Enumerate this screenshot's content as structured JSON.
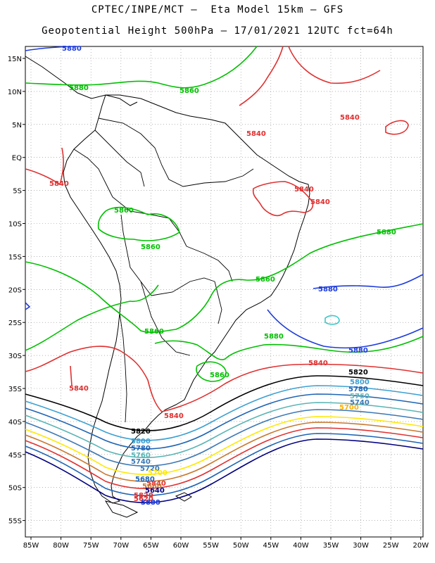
{
  "header": {
    "line1": "CPTEC/INPE/MCT –  Eta Model 15km – GFS",
    "line2": "Geopotential Height 500hPa – 17/01/2021 12UTC fct=64h"
  },
  "axes": {
    "lat_labels": [
      "15N",
      "10N",
      "5N",
      "EQ",
      "5S",
      "10S",
      "15S",
      "20S",
      "25S",
      "30S",
      "35S",
      "40S",
      "45S",
      "50S",
      "55S"
    ],
    "lon_labels": [
      "85W",
      "80W",
      "75W",
      "70W",
      "65W",
      "60W",
      "55W",
      "50W",
      "45W",
      "40W",
      "35W",
      "30W",
      "25W",
      "20W"
    ]
  },
  "contour_colors": {
    "5880_green": "#00c000",
    "5840_red": "#e03030",
    "5880_blue": "#1e3cdc",
    "5820_black": "#000000",
    "5800": "#3ca0d2",
    "5780": "#1e64b4",
    "5760": "#5ab4b4",
    "5740": "#3c78b4",
    "5720": "#ffe800",
    "5700": "#c87830",
    "land": "#000000"
  },
  "contour_labels": {
    "green": [
      "5880",
      "5860",
      "5860",
      "5860",
      "5880",
      "5860",
      "5860",
      "5880",
      "5860"
    ],
    "red": [
      "5840",
      "5840",
      "5840",
      "5840",
      "5840",
      "5840",
      "5840",
      "5840",
      "5820",
      "5840"
    ],
    "blue": [
      "5880",
      "5880",
      "5880",
      "5880"
    ],
    "black": [
      "5820",
      "5820"
    ],
    "south": [
      "5800",
      "5780",
      "5760",
      "5740",
      "5700",
      "5800",
      "5780",
      "5760",
      "5740",
      "5720",
      "5700",
      "5680",
      "5660",
      "5640",
      "5620",
      "5600"
    ]
  }
}
